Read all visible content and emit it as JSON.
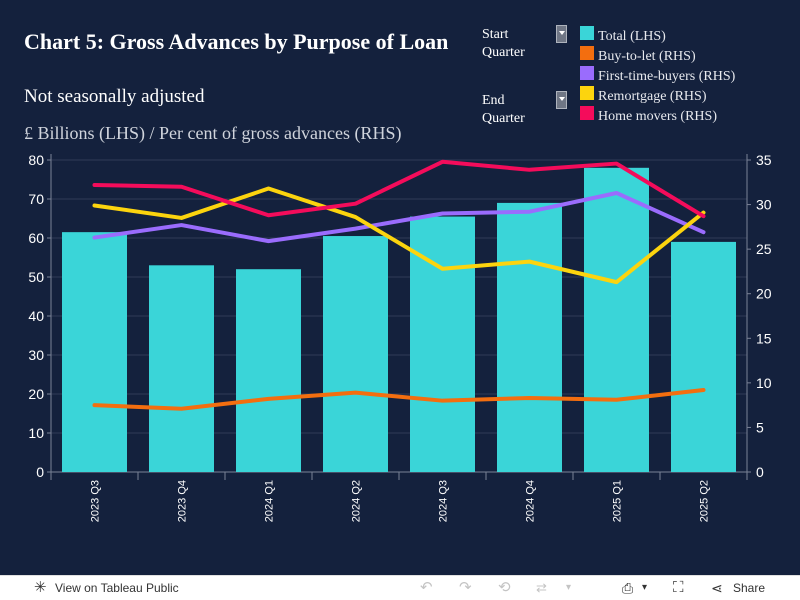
{
  "title": "Chart 5: Gross Advances by Purpose of Loan",
  "subtitle": "Not seasonally adjusted",
  "units_label": "£ Billions (LHS) / Per cent of gross advances (RHS)",
  "filters": {
    "start": {
      "label_line1": "Start",
      "label_line2": "Quarter"
    },
    "end": {
      "label_line1": "End",
      "label_line2": "Quarter"
    }
  },
  "legend": [
    {
      "name": "Total (LHS)",
      "color": "#3ad5d8"
    },
    {
      "name": "Buy-to-let (RHS)",
      "color": "#f36e0f"
    },
    {
      "name": "First-time-buyers (RHS)",
      "color": "#9a6cfd"
    },
    {
      "name": "Remortgage (RHS)",
      "color": "#fcd40e"
    },
    {
      "name": "Home movers (RHS)",
      "color": "#f40c5b"
    }
  ],
  "toolbar": {
    "view_label": "View on Tableau Public",
    "share_label": "Share",
    "icons": [
      "tableau-icon",
      "undo-icon",
      "redo-icon",
      "revert-icon",
      "refresh-icon",
      "pause-icon",
      "download-icon",
      "fullscreen-icon",
      "share-icon"
    ]
  },
  "chart_data": {
    "type": "bar",
    "categories": [
      "2023 Q3",
      "2023 Q4",
      "2024 Q1",
      "2024 Q2",
      "2024 Q3",
      "2024 Q4",
      "2025 Q1",
      "2025 Q2"
    ],
    "left_axis": {
      "min": 0,
      "max": 80,
      "ticks": [
        0,
        10,
        20,
        30,
        40,
        50,
        60,
        70,
        80
      ]
    },
    "right_axis": {
      "min": 0,
      "max": 35,
      "ticks": [
        0,
        5,
        10,
        15,
        20,
        25,
        30,
        35
      ]
    },
    "grid": true,
    "series": [
      {
        "name": "Total (LHS)",
        "type": "bar",
        "axis": "left",
        "color": "#3ad5d8",
        "values": [
          61.5,
          53,
          52,
          60.5,
          65.5,
          69,
          78,
          59
        ]
      },
      {
        "name": "Buy-to-let (RHS)",
        "type": "line",
        "axis": "right",
        "color": "#f36e0f",
        "values": [
          7.5,
          7.1,
          8.2,
          8.9,
          8.0,
          8.3,
          8.1,
          9.2
        ]
      },
      {
        "name": "First-time-buyers (RHS)",
        "type": "line",
        "axis": "right",
        "color": "#9a6cfd",
        "values": [
          26.3,
          27.7,
          25.9,
          27.3,
          29.0,
          29.2,
          31.3,
          26.9
        ]
      },
      {
        "name": "Remortgage (RHS)",
        "type": "line",
        "axis": "right",
        "color": "#fcd40e",
        "values": [
          29.9,
          28.5,
          31.8,
          28.6,
          22.8,
          23.6,
          21.3,
          29.1
        ]
      },
      {
        "name": "Home movers (RHS)",
        "type": "line",
        "axis": "right",
        "color": "#f40c5b",
        "values": [
          32.2,
          32.0,
          28.8,
          30.1,
          34.8,
          33.9,
          34.6,
          28.7
        ]
      }
    ]
  }
}
